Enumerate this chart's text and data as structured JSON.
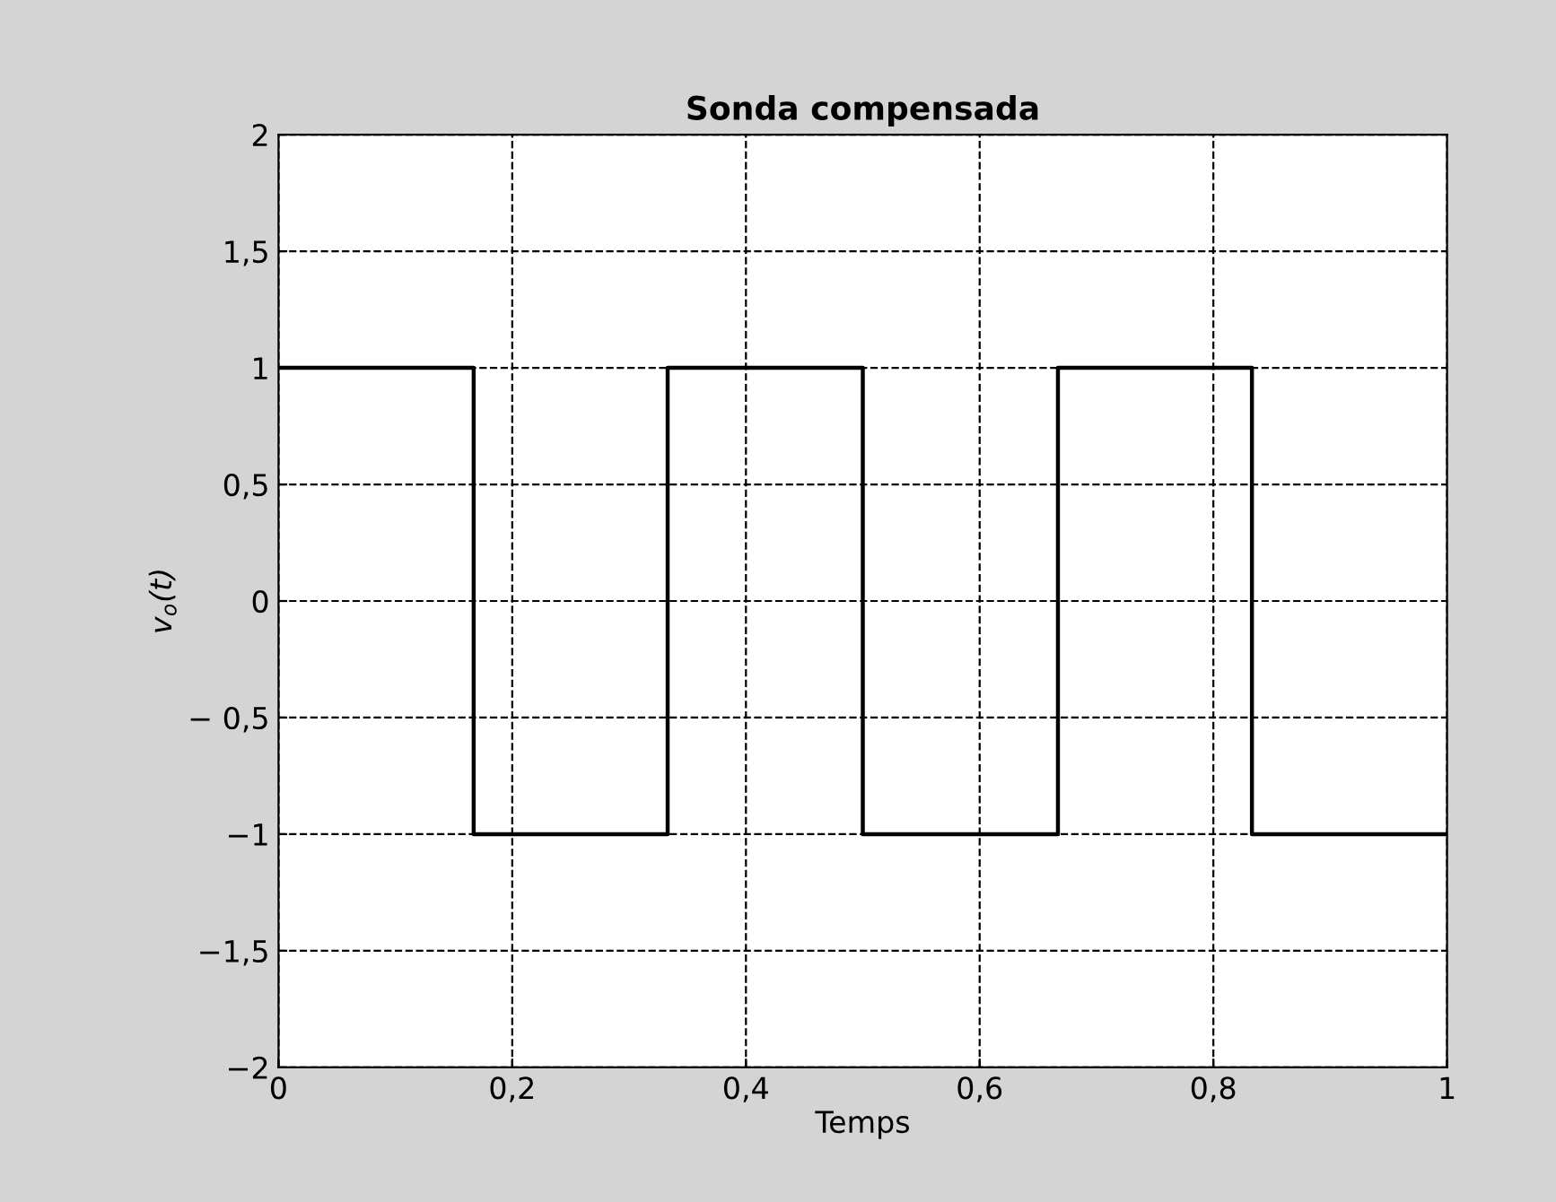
{
  "chart_data": {
    "type": "step",
    "title": "Sonda compensada",
    "xlabel": "Temps",
    "ylabel": "v$_{o}$(t)",
    "x": [
      0,
      0.167,
      0.333,
      0.5,
      0.667,
      0.833,
      1
    ],
    "series": [
      {
        "color": "#000000",
        "values": [
          1,
          -1,
          1,
          -1,
          1,
          -1,
          -1
        ]
      }
    ],
    "xlim": [
      0,
      1
    ],
    "xticks": [
      0,
      {
        "value": 0.2,
        "label": "0,2"
      },
      {
        "value": 0.4,
        "label": "0,4"
      },
      {
        "value": 0.6,
        "label": "0,6"
      },
      {
        "value": 0.8,
        "label": "0,8"
      },
      1
    ],
    "ylim": [
      -2,
      2
    ],
    "yticks": [
      {
        "value": -2,
        "label": "−2"
      },
      {
        "value": -1.5,
        "label": "−1,5"
      },
      {
        "value": -1,
        "label": "−1"
      },
      {
        "value": -0.5,
        "label": "− 0,5"
      },
      0,
      {
        "value": 0.5,
        "label": "0,5"
      },
      1,
      {
        "value": 1.5,
        "label": "1,5"
      },
      2
    ],
    "grid": true
  }
}
